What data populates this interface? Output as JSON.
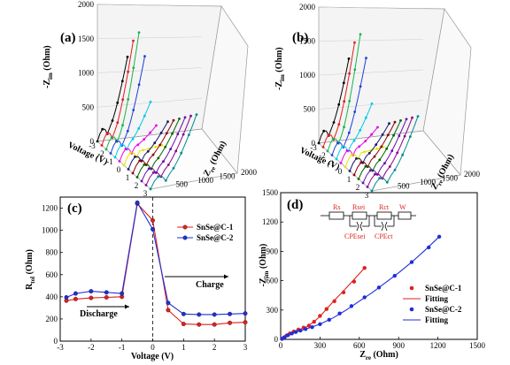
{
  "panels": {
    "a": {
      "label": "(a)",
      "zim_label": "-Z",
      "zim_sub": "im",
      "zim_unit": " (Ohm)",
      "zre_label": "Z",
      "zre_sub": "re",
      "zre_unit": " (Ohm)",
      "voltage_label": "Voltage (V)",
      "zim_ticks": [
        "0",
        "500",
        "1000",
        "1500",
        "2000"
      ],
      "zre_ticks": [
        "500",
        "1000",
        "1500",
        "2000"
      ],
      "voltage_ticks": [
        "-3",
        "-2",
        "-1",
        "0",
        "1",
        "2",
        "3"
      ]
    },
    "b": {
      "label": "(b)",
      "zim_label": "-Z",
      "zim_sub": "im",
      "zim_unit": " (Ohm)",
      "zre_label": "Z",
      "zre_sub": "re",
      "zre_unit": " (Ohm)",
      "voltage_label": "Voltage (V)",
      "zim_ticks": [
        "0",
        "500",
        "1000",
        "1500",
        "2000"
      ],
      "zre_ticks": [
        "500",
        "1000",
        "1500",
        "2000"
      ],
      "voltage_ticks": [
        "-3",
        "-2",
        "-1",
        "0",
        "1",
        "2",
        "3"
      ]
    },
    "d_circuit": {
      "elements": [
        "Rs",
        "Rsei",
        "Rct",
        "W",
        "CPEsei",
        "CPEct"
      ]
    }
  },
  "colors": {
    "series1": "#e0201b",
    "series2": "#1f2fd8",
    "curves_3d": [
      "#000000",
      "#e41a1c",
      "#19b34a",
      "#1e3fd8",
      "#00c8e6",
      "#e800e8",
      "#e6e600",
      "#1a1a6e",
      "#8b0000",
      "#006400",
      "#6a0dad",
      "#8b008b",
      "#008b8b",
      "#ff6f3c"
    ]
  },
  "chart_data": [
    {
      "type": "line",
      "panel": "(c)",
      "xlabel": "Voltage (V)",
      "ylabel": "R",
      "ylabel_sub": "tol",
      "ylabel_unit": " (Ohm)",
      "xlim": [
        -3,
        3
      ],
      "ylim": [
        0,
        1300
      ],
      "xticks": [
        -3,
        -2,
        -1,
        0,
        1,
        2,
        3
      ],
      "yticks": [
        0,
        200,
        400,
        600,
        800,
        1000,
        1200
      ],
      "annotations": [
        "Discharge",
        "Charge"
      ],
      "legend_position": "top-right",
      "series": [
        {
          "name": "SnSe@C-1",
          "x": [
            -2.8,
            -2.5,
            -2.0,
            -1.5,
            -1.0,
            -0.5,
            0.0,
            0.5,
            1.0,
            1.5,
            2.0,
            2.5,
            3.0
          ],
          "y": [
            365,
            380,
            390,
            395,
            400,
            1240,
            1090,
            280,
            155,
            150,
            150,
            165,
            170
          ]
        },
        {
          "name": "SnSe@C-2",
          "x": [
            -2.8,
            -2.5,
            -2.0,
            -1.5,
            -1.0,
            -0.5,
            0.0,
            0.5,
            1.0,
            1.5,
            2.0,
            2.5,
            3.0
          ],
          "y": [
            395,
            430,
            450,
            440,
            430,
            1250,
            1010,
            345,
            245,
            240,
            240,
            245,
            250
          ]
        }
      ]
    },
    {
      "type": "scatter",
      "panel": "(d)",
      "xlabel": "Z",
      "xlabel_sub": "re",
      "xlabel_unit": " (Ohm)",
      "ylabel": "-Z",
      "ylabel_sub": "im",
      "ylabel_unit": " (Ohm)",
      "xlim": [
        0,
        1500
      ],
      "ylim": [
        0,
        1500
      ],
      "xticks": [
        0,
        300,
        600,
        900,
        1200,
        1500
      ],
      "yticks": [
        0,
        300,
        600,
        900,
        1200,
        1500
      ],
      "legend_position": "bottom-right",
      "series": [
        {
          "name": "SnSe@C-1",
          "kind": "points",
          "x": [
            10,
            25,
            45,
            70,
            100,
            135,
            175,
            215,
            255,
            300,
            350,
            410,
            480,
            560,
            640
          ],
          "y": [
            5,
            20,
            40,
            60,
            80,
            100,
            120,
            140,
            180,
            240,
            310,
            390,
            480,
            590,
            730
          ]
        },
        {
          "name": "Fitting",
          "kind": "line",
          "color_ref": "series1",
          "x": [
            5,
            50,
            100,
            150,
            200,
            250,
            300,
            400,
            500,
            640
          ],
          "y": [
            3,
            45,
            80,
            105,
            130,
            175,
            235,
            385,
            525,
            730
          ]
        },
        {
          "name": "SnSe@C-2",
          "kind": "points",
          "x": [
            10,
            30,
            55,
            85,
            115,
            150,
            190,
            240,
            300,
            370,
            450,
            540,
            640,
            750,
            870,
            1000,
            1130,
            1210
          ],
          "y": [
            5,
            22,
            42,
            60,
            75,
            90,
            105,
            125,
            155,
            200,
            265,
            340,
            430,
            530,
            650,
            790,
            940,
            1050
          ]
        },
        {
          "name": "Fitting",
          "kind": "line",
          "color_ref": "series2",
          "x": [
            5,
            100,
            200,
            300,
            400,
            500,
            600,
            700,
            800,
            900,
            1000,
            1100,
            1210
          ],
          "y": [
            3,
            70,
            108,
            155,
            220,
            300,
            390,
            480,
            580,
            680,
            790,
            910,
            1050
          ]
        }
      ]
    }
  ]
}
